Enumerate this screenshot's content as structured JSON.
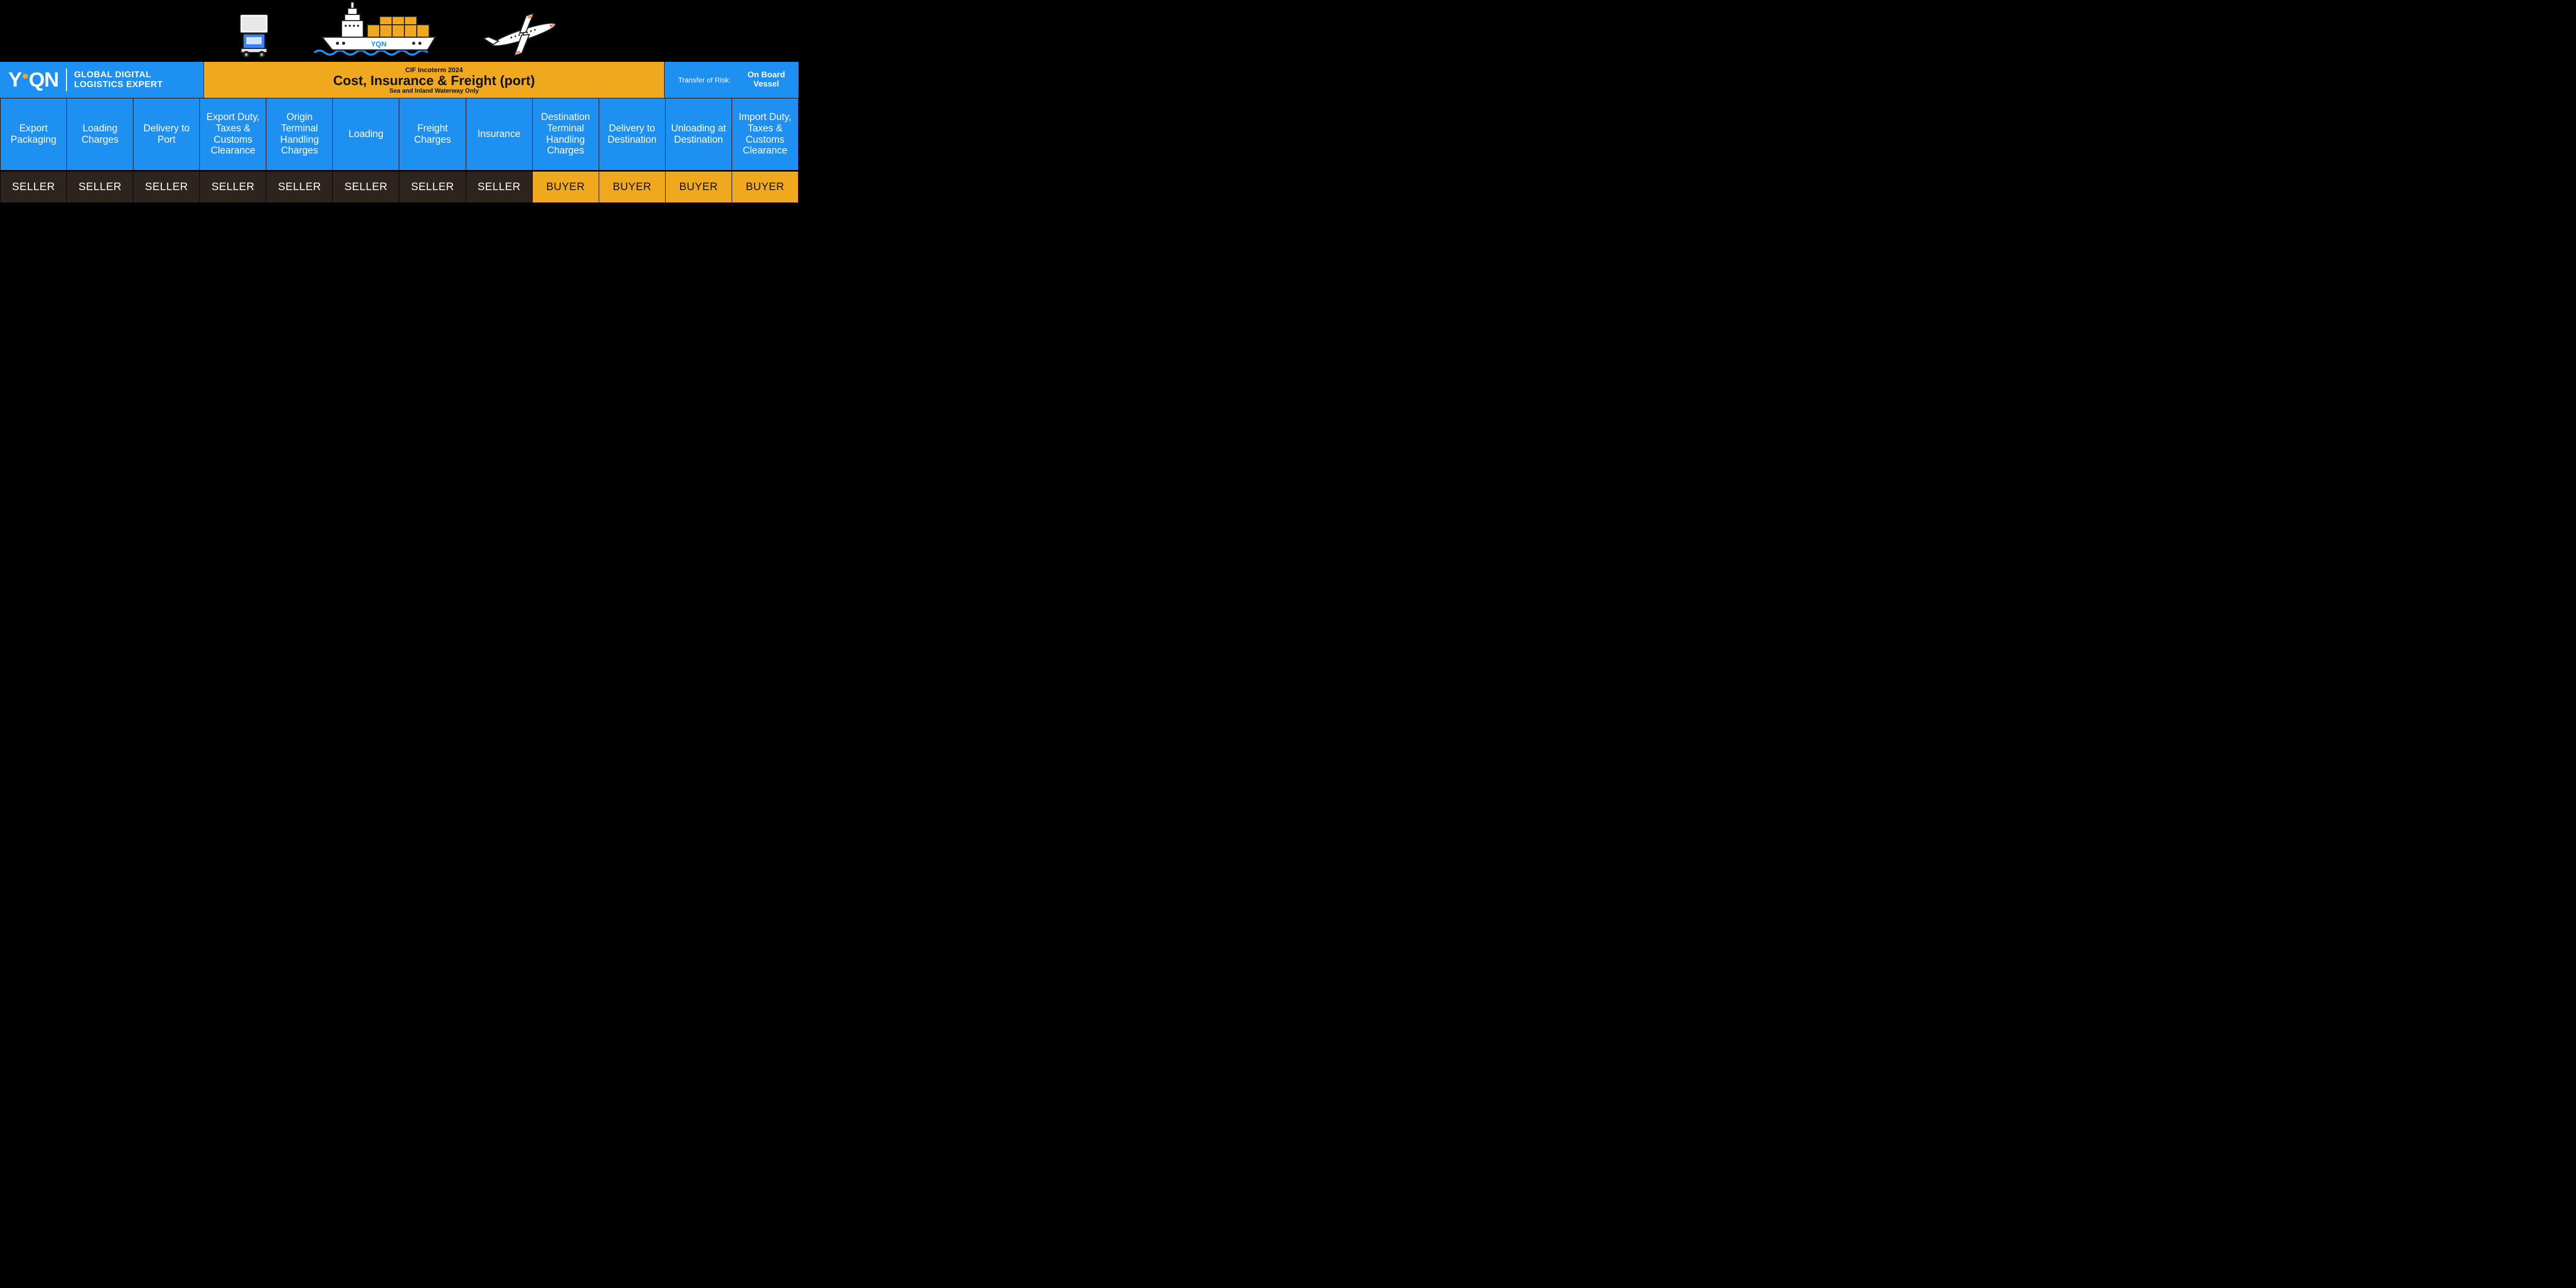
{
  "colors": {
    "blue": "#1e90f2",
    "orange": "#f0a81e",
    "seller_bg": "#2d241f",
    "seller_fg": "#ffffff",
    "buyer_bg": "#f0a81e",
    "buyer_fg": "#111111"
  },
  "logo": {
    "mark": "YQN",
    "tagline_line1": "GLOBAL DIGITAL",
    "tagline_line2": "LOGISTICS EXPERT"
  },
  "title": {
    "super": "CIF Incoterm 2024",
    "main": "Cost, Insurance & Freight (port)",
    "sub": "Sea and Inland Waterway Only"
  },
  "risk": {
    "label": "Transfer of Risk:",
    "value_line1": "On Board",
    "value_line2": "Vessel"
  },
  "ship_logo": "YQN",
  "columns": [
    {
      "label": "Export Packaging",
      "responsibility": "SELLER"
    },
    {
      "label": "Loading Charges",
      "responsibility": "SELLER"
    },
    {
      "label": "Delivery to Port",
      "responsibility": "SELLER"
    },
    {
      "label": "Export Duty, Taxes & Customs Clearance",
      "responsibility": "SELLER"
    },
    {
      "label": "Origin Terminal Handling Charges",
      "responsibility": "SELLER"
    },
    {
      "label": "Loading",
      "responsibility": "SELLER"
    },
    {
      "label": "Freight Charges",
      "responsibility": "SELLER"
    },
    {
      "label": "Insurance",
      "responsibility": "SELLER"
    },
    {
      "label": "Destination Terminal Handling Charges",
      "responsibility": "BUYER"
    },
    {
      "label": "Delivery to Destination",
      "responsibility": "BUYER"
    },
    {
      "label": "Unloading at Destination",
      "responsibility": "BUYER"
    },
    {
      "label": "Import Duty, Taxes & Customs Clearance",
      "responsibility": "BUYER"
    }
  ]
}
